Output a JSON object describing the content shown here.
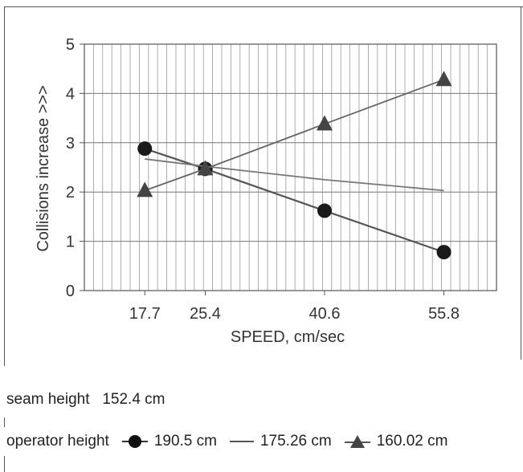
{
  "chart_data": {
    "type": "line",
    "title": "",
    "xlabel": "SPEED, cm/sec",
    "ylabel": "Collisions increase >>>",
    "x": [
      17.7,
      25.4,
      40.6,
      55.8
    ],
    "x_tick_labels": [
      "17.7",
      "25.4",
      "40.6",
      "55.8"
    ],
    "xlim": [
      10,
      62.5
    ],
    "ylim": [
      0,
      5
    ],
    "y_ticks": [
      0,
      1,
      2,
      3,
      4,
      5
    ],
    "grid": true,
    "series": [
      {
        "name": "190.5 cm",
        "marker": "circle",
        "color": "#555555",
        "values": [
          2.88,
          2.47,
          1.62,
          0.78
        ]
      },
      {
        "name": "175.26 cm",
        "marker": "none",
        "color": "#777777",
        "values": [
          2.67,
          2.52,
          2.25,
          2.03
        ]
      },
      {
        "name": "160.02 cm",
        "marker": "triangle",
        "color": "#666666",
        "values": [
          2.03,
          2.47,
          3.38,
          4.28
        ]
      }
    ]
  },
  "caption": {
    "seam_label": "seam height",
    "seam_value": "152.4 cm",
    "operator_label": "operator height"
  }
}
